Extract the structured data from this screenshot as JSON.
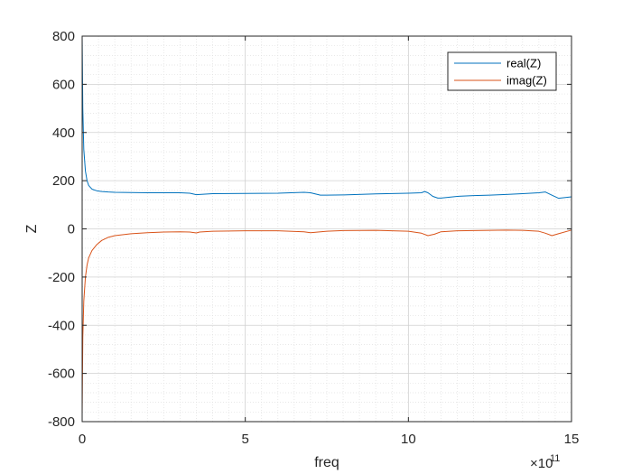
{
  "chart_data": {
    "type": "line",
    "xlabel": "freq",
    "ylabel": "Z",
    "x_exponent_label": "×10",
    "x_exponent_power": "11",
    "xlim": [
      0,
      15
    ],
    "ylim": [
      -800,
      800
    ],
    "x_ticks": [
      0,
      5,
      10,
      15
    ],
    "x_tick_labels": [
      "0",
      "5",
      "10",
      "15"
    ],
    "y_ticks": [
      -800,
      -600,
      -400,
      -200,
      0,
      200,
      400,
      600,
      800
    ],
    "y_tick_labels": [
      "-800",
      "-600",
      "-400",
      "-200",
      "0",
      "200",
      "400",
      "600",
      "800"
    ],
    "grid": true,
    "minor_grid": true,
    "legend_position": "top-right",
    "series": [
      {
        "name": "real(Z)",
        "color": "#0072BD",
        "x": [
          0,
          0.02,
          0.05,
          0.1,
          0.15,
          0.2,
          0.3,
          0.45,
          0.6,
          0.8,
          1.0,
          1.5,
          2.0,
          2.5,
          3.0,
          3.3,
          3.5,
          3.6,
          4.0,
          5.0,
          6.0,
          6.8,
          7.0,
          7.3,
          7.5,
          8.0,
          9.0,
          10.0,
          10.4,
          10.5,
          10.6,
          10.75,
          10.9,
          11.0,
          11.5,
          12.0,
          12.5,
          13.0,
          13.5,
          14.0,
          14.2,
          14.4,
          14.6,
          15.0
        ],
        "y": [
          800,
          500,
          330,
          240,
          200,
          180,
          165,
          158,
          155,
          153,
          152,
          151,
          150,
          150,
          150,
          148,
          142,
          143,
          146,
          147,
          148,
          152,
          150,
          140,
          140,
          141,
          145,
          148,
          150,
          155,
          150,
          135,
          128,
          128,
          135,
          138,
          140,
          143,
          146,
          150,
          153,
          140,
          127,
          133
        ]
      },
      {
        "name": "imag(Z)",
        "color": "#D95319",
        "x": [
          0,
          0.02,
          0.05,
          0.1,
          0.15,
          0.2,
          0.3,
          0.45,
          0.6,
          0.8,
          1.0,
          1.5,
          2.0,
          2.5,
          3.0,
          3.3,
          3.5,
          3.6,
          4.0,
          5.0,
          6.0,
          6.8,
          7.0,
          7.5,
          8.0,
          9.0,
          10.0,
          10.4,
          10.6,
          10.8,
          11.0,
          11.5,
          12.0,
          12.5,
          13.0,
          13.5,
          14.0,
          14.2,
          14.4,
          14.6,
          15.0
        ],
        "y": [
          -770,
          -450,
          -300,
          -200,
          -150,
          -120,
          -90,
          -65,
          -48,
          -35,
          -28,
          -20,
          -16,
          -13,
          -12,
          -13,
          -17,
          -13,
          -10,
          -8,
          -8,
          -12,
          -16,
          -10,
          -7,
          -6,
          -10,
          -18,
          -28,
          -22,
          -12,
          -8,
          -7,
          -6,
          -5,
          -6,
          -10,
          -18,
          -28,
          -20,
          -5
        ]
      }
    ]
  }
}
